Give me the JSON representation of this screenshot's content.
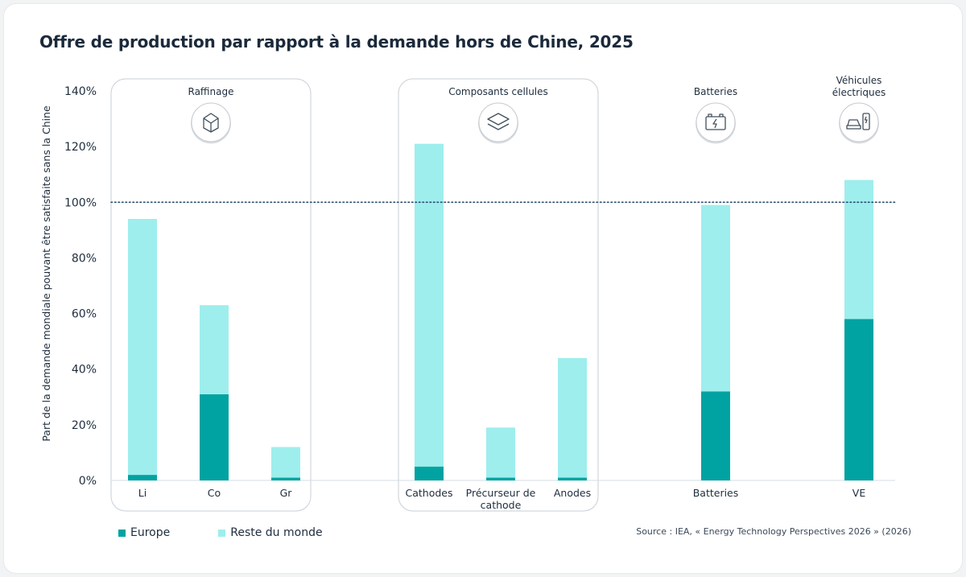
{
  "title": "Offre de production par rapport à la demande hors de Chine, 2025",
  "source": "Source : IEA, « Energy Technology Perspectives 2026 » (2026)",
  "colors": {
    "europe": "#00a3a1",
    "rest": "#9eeeed",
    "reference_line": "#2a4d6e",
    "group_border": "#c9cfd6",
    "axis_text": "#1e2d3d"
  },
  "legend": [
    {
      "name": "Europe",
      "color": "#00a3a1"
    },
    {
      "name": "Reste du monde",
      "color": "#9eeeed"
    }
  ],
  "chart_data": {
    "type": "bar",
    "stacked": true,
    "ylabel": "Part de la demande mondiale pouvant être satisfaite sans la Chine",
    "ylim": [
      0,
      140
    ],
    "yticks": [
      "0%",
      "20%",
      "40%",
      "60%",
      "80%",
      "100%",
      "120%",
      "140%"
    ],
    "reference_line": 100,
    "categories": [
      {
        "label": "Li",
        "group": 0
      },
      {
        "label": "Co",
        "group": 0
      },
      {
        "label": "Gr",
        "group": 0
      },
      {
        "label": "Cathodes",
        "group": 1
      },
      {
        "label": "Précurseur de\ncathode",
        "group": 1
      },
      {
        "label": "Anodes",
        "group": 1
      },
      {
        "label": "Batteries",
        "group": 2
      },
      {
        "label": "VE",
        "group": 3
      }
    ],
    "groups": [
      {
        "label": "Raffinage",
        "icon": "cube-icon"
      },
      {
        "label": "Composants cellules",
        "icon": "layers-icon"
      },
      {
        "label": "Batteries",
        "icon": "battery-icon"
      },
      {
        "label": "Véhicules\nélectriques",
        "icon": "ev-charging-icon"
      }
    ],
    "series": [
      {
        "name": "Europe",
        "values": [
          2,
          31,
          1,
          5,
          1,
          1,
          32,
          58
        ]
      },
      {
        "name": "Reste du monde",
        "values": [
          92,
          32,
          11,
          116,
          18,
          43,
          67,
          50
        ]
      }
    ]
  }
}
